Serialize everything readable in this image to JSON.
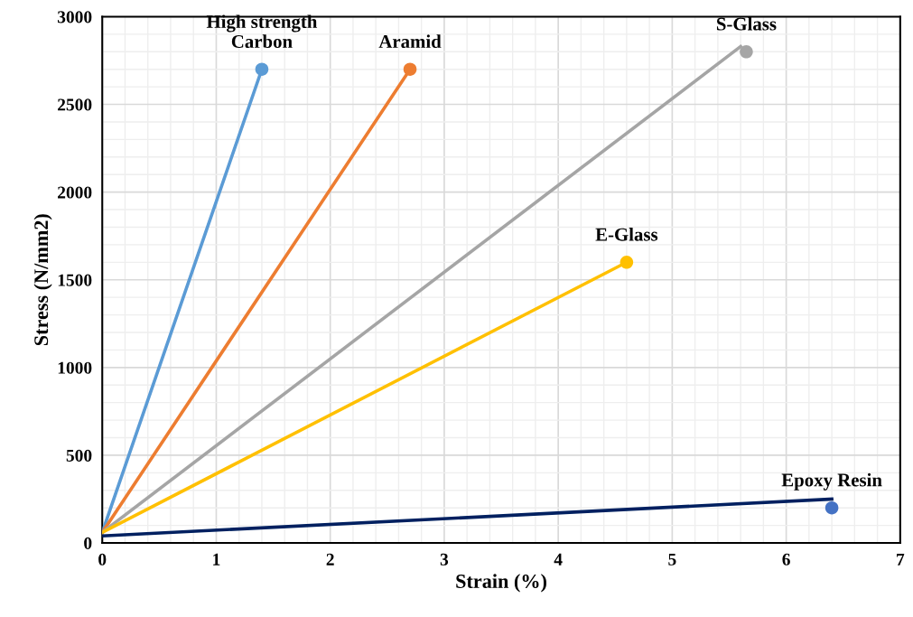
{
  "chart_data": {
    "type": "line",
    "xlabel": "Strain (%)",
    "ylabel": "Stress (N/mm2)",
    "xlim": [
      0,
      7
    ],
    "xticks": [
      0,
      1,
      2,
      3,
      4,
      5,
      6,
      7
    ],
    "ylim": [
      0,
      3000
    ],
    "yticks": [
      0,
      500,
      1000,
      1500,
      2000,
      2500,
      3000
    ],
    "grid": true,
    "series": [
      {
        "color": "#5b9bd5",
        "x": [
          0,
          1.4
        ],
        "values": [
          60,
          2700
        ]
      },
      {
        "color": "#ed7d31",
        "x": [
          0,
          2.7
        ],
        "values": [
          60,
          2700
        ]
      },
      {
        "color": "#a5a5a5",
        "x": [
          0,
          5.6
        ],
        "values": [
          60,
          2830
        ]
      },
      {
        "color": "#ffc000",
        "x": [
          0,
          4.6
        ],
        "values": [
          60,
          1600
        ]
      },
      {
        "color": "#002060",
        "x": [
          0,
          6.4
        ],
        "values": [
          40,
          250
        ]
      },
      {
        "type": "scatter",
        "marker": "circle",
        "name": "High strength\nCarbon",
        "color": "#5b9bd5",
        "x": [
          1.4
        ],
        "values": [
          2700
        ]
      },
      {
        "type": "scatter",
        "marker": "circle",
        "name": "Aramid",
        "color": "#ed7d31",
        "x": [
          2.7
        ],
        "values": [
          2700
        ]
      },
      {
        "type": "scatter",
        "marker": "circle",
        "name": "S-Glass",
        "color": "#a5a5a5",
        "x": [
          5.65
        ],
        "values": [
          2800
        ]
      },
      {
        "type": "scatter",
        "marker": "circle",
        "name": "E-Glass",
        "color": "#ffc000",
        "x": [
          4.6
        ],
        "values": [
          1600
        ]
      },
      {
        "type": "scatter",
        "marker": "circle",
        "name": "Epoxy Resin",
        "color": "#4472c4",
        "x": [
          6.4
        ],
        "values": [
          200
        ]
      }
    ]
  }
}
